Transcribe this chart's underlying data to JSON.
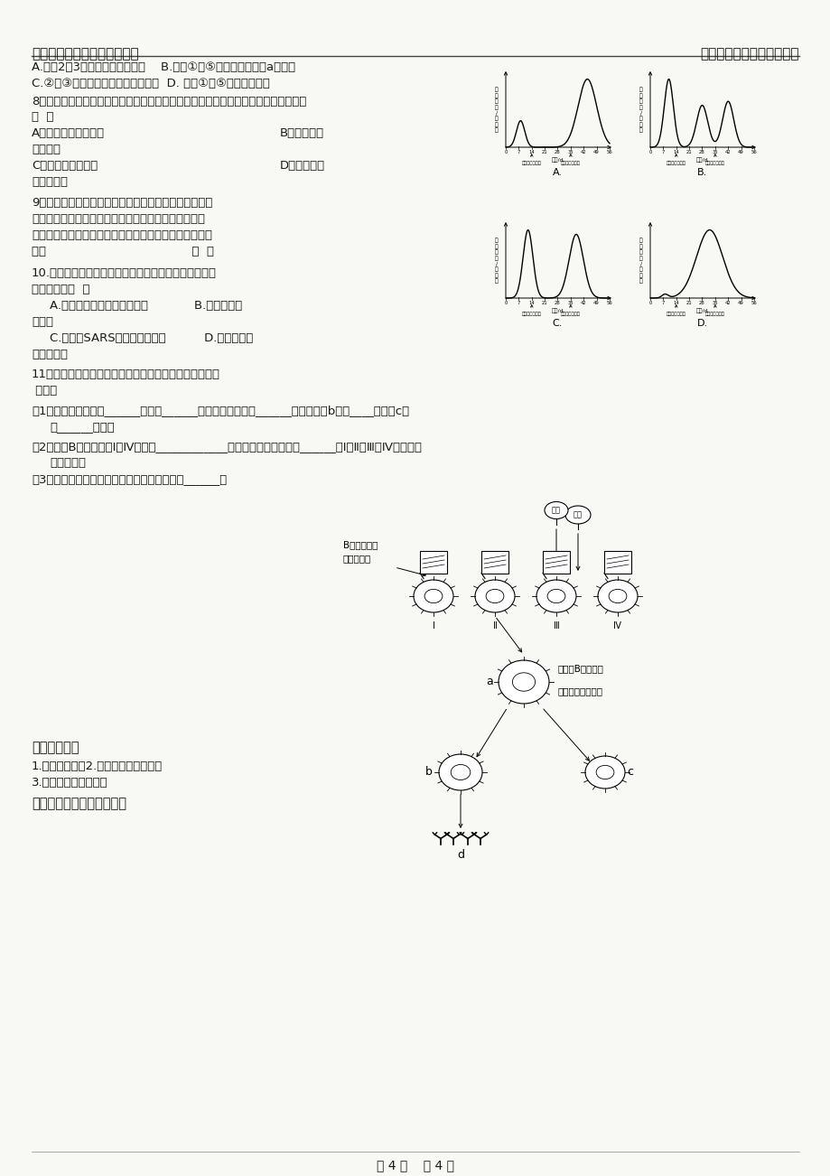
{
  "header_left": "华粤高考复读学校生物备课组",
  "header_right": "合理安排时间就是节约时间",
  "bg_color": "#f8f8f4",
  "text_color": "#1a1a1a",
  "page_footer": "第 4 页    共 4 页"
}
